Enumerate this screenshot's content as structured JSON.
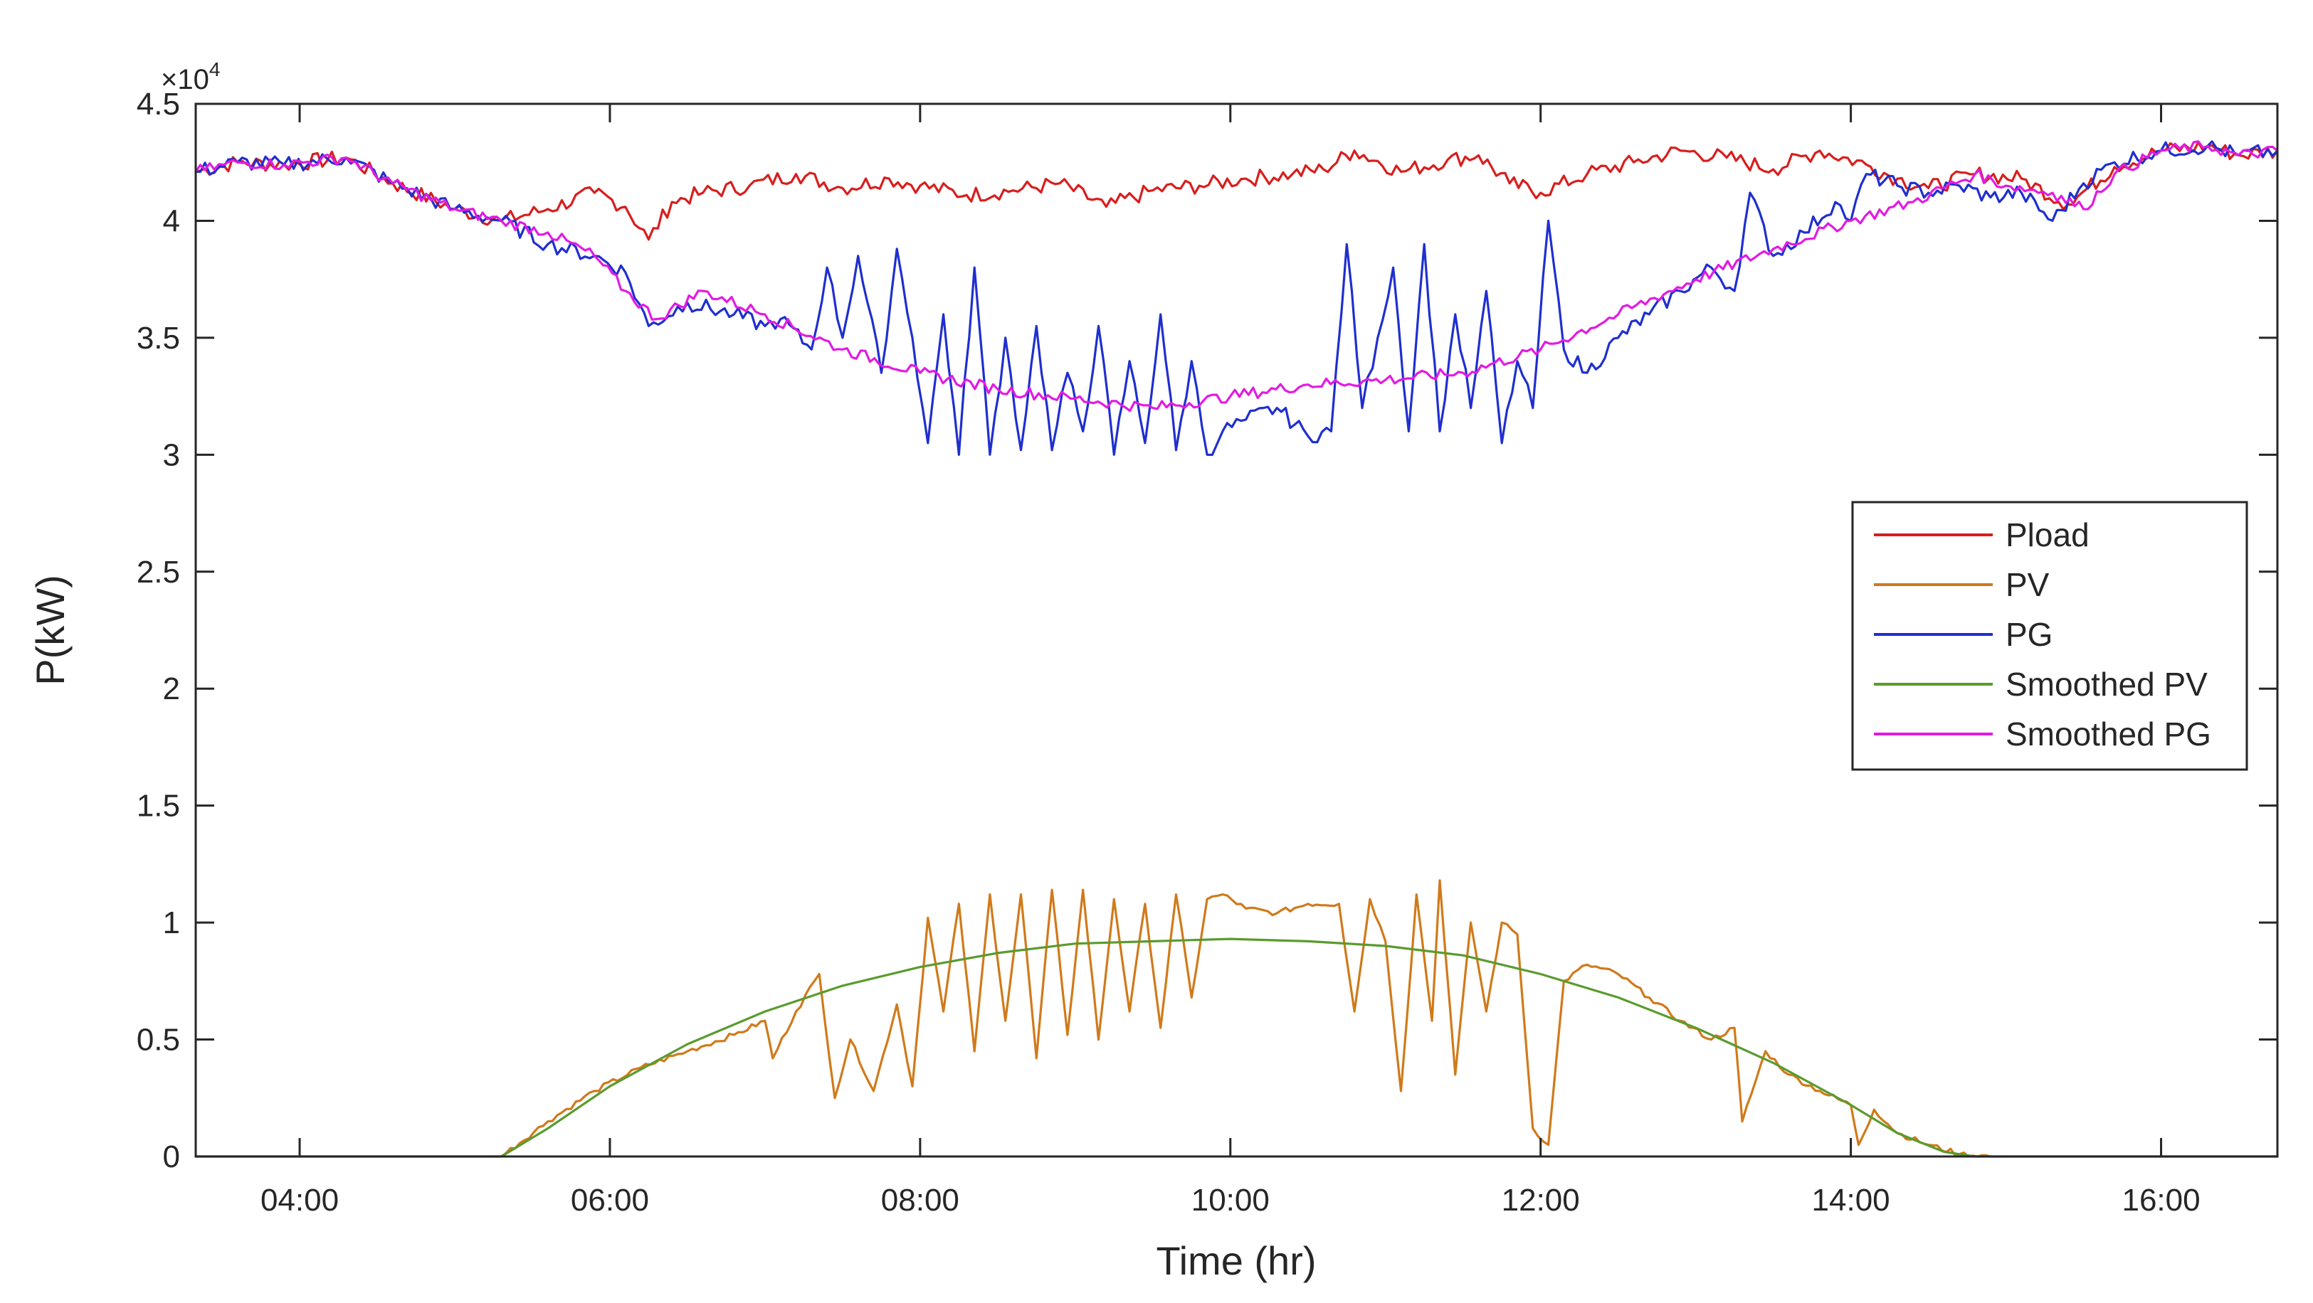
{
  "chart_data": {
    "type": "line",
    "title": "",
    "xlabel": "Time (hr)",
    "ylabel": "P(kW)",
    "y_multiplier": {
      "base": "×10",
      "exponent": "4"
    },
    "xlim": [
      3.33,
      16.75
    ],
    "ylim": [
      0,
      4.5
    ],
    "x_ticks": [
      {
        "value": 4,
        "label": "04:00"
      },
      {
        "value": 6,
        "label": "06:00"
      },
      {
        "value": 8,
        "label": "08:00"
      },
      {
        "value": 10,
        "label": "10:00"
      },
      {
        "value": 12,
        "label": "12:00"
      },
      {
        "value": 14,
        "label": "14:00"
      },
      {
        "value": 16,
        "label": "16:00"
      }
    ],
    "y_ticks": [
      {
        "value": 0,
        "label": "0"
      },
      {
        "value": 0.5,
        "label": "0.5"
      },
      {
        "value": 1,
        "label": "1"
      },
      {
        "value": 1.5,
        "label": "1.5"
      },
      {
        "value": 2,
        "label": "2"
      },
      {
        "value": 2.5,
        "label": "2.5"
      },
      {
        "value": 3,
        "label": "3"
      },
      {
        "value": 3.5,
        "label": "3.5"
      },
      {
        "value": 4,
        "label": "4"
      },
      {
        "value": 4.5,
        "label": "4.5"
      }
    ],
    "grid": false,
    "legend_position": "right",
    "series": [
      {
        "name": "Pload",
        "color": "#d81e1e",
        "x": [
          3.33,
          3.6,
          3.9,
          4.3,
          4.6,
          5.0,
          5.3,
          5.6,
          5.9,
          6.1,
          6.25,
          6.4,
          6.6,
          6.9,
          7.2,
          7.5,
          7.8,
          8.0,
          8.3,
          8.6,
          8.9,
          9.2,
          9.5,
          9.8,
          10.1,
          10.4,
          10.6,
          10.8,
          11.1,
          11.4,
          11.6,
          11.8,
          12.0,
          12.3,
          12.6,
          12.9,
          13.2,
          13.5,
          13.8,
          14.1,
          14.3,
          14.5,
          14.8,
          15.1,
          15.4,
          15.7,
          16.0,
          16.3,
          16.5,
          16.75
        ],
        "y": [
          4.21,
          4.25,
          4.24,
          4.27,
          4.16,
          4.05,
          4.0,
          4.05,
          4.12,
          4.06,
          3.92,
          4.08,
          4.12,
          4.15,
          4.2,
          4.14,
          4.18,
          4.15,
          4.11,
          4.13,
          4.16,
          4.06,
          4.13,
          4.15,
          4.18,
          4.2,
          4.22,
          4.3,
          4.21,
          4.26,
          4.28,
          4.16,
          4.12,
          4.2,
          4.25,
          4.3,
          4.27,
          4.22,
          4.3,
          4.24,
          4.18,
          4.14,
          4.2,
          4.18,
          4.07,
          4.23,
          4.3,
          4.32,
          4.28,
          4.3
        ]
      },
      {
        "name": "PV",
        "color": "#d07a1a",
        "x": [
          3.33,
          5.3,
          5.6,
          5.9,
          6.2,
          6.5,
          6.8,
          7.0,
          7.05,
          7.2,
          7.35,
          7.45,
          7.55,
          7.7,
          7.85,
          7.95,
          8.05,
          8.15,
          8.25,
          8.35,
          8.45,
          8.55,
          8.65,
          8.75,
          8.85,
          8.95,
          9.05,
          9.15,
          9.25,
          9.35,
          9.45,
          9.55,
          9.65,
          9.75,
          9.85,
          9.95,
          10.1,
          10.3,
          10.5,
          10.7,
          10.8,
          10.9,
          11.0,
          11.1,
          11.2,
          11.3,
          11.35,
          11.45,
          11.55,
          11.65,
          11.75,
          11.85,
          11.95,
          12.05,
          12.15,
          12.3,
          12.5,
          12.7,
          12.9,
          13.1,
          13.25,
          13.3,
          13.45,
          13.6,
          13.8,
          14.0,
          14.05,
          14.15,
          14.3,
          14.5,
          14.7,
          14.9,
          15.2,
          16.0,
          16.75
        ],
        "y": [
          0,
          0,
          0.15,
          0.28,
          0.38,
          0.45,
          0.52,
          0.58,
          0.42,
          0.62,
          0.78,
          0.25,
          0.5,
          0.28,
          0.65,
          0.3,
          1.02,
          0.62,
          1.08,
          0.45,
          1.12,
          0.58,
          1.12,
          0.42,
          1.14,
          0.52,
          1.14,
          0.5,
          1.1,
          0.62,
          1.08,
          0.55,
          1.12,
          0.68,
          1.1,
          1.12,
          1.06,
          1.04,
          1.08,
          1.08,
          0.62,
          1.1,
          0.92,
          0.28,
          1.12,
          0.58,
          1.18,
          0.35,
          1.0,
          0.62,
          1.0,
          0.95,
          0.12,
          0.05,
          0.75,
          0.82,
          0.78,
          0.68,
          0.58,
          0.5,
          0.55,
          0.15,
          0.45,
          0.35,
          0.28,
          0.22,
          0.05,
          0.2,
          0.1,
          0.05,
          0.01,
          0,
          0,
          0,
          0
        ]
      },
      {
        "name": "PG",
        "color": "#1f2fd0",
        "x": [
          3.33,
          3.6,
          3.9,
          4.3,
          4.6,
          5.0,
          5.3,
          5.6,
          5.9,
          6.1,
          6.25,
          6.5,
          6.8,
          7.0,
          7.1,
          7.3,
          7.4,
          7.5,
          7.6,
          7.75,
          7.85,
          7.95,
          8.05,
          8.15,
          8.25,
          8.35,
          8.45,
          8.55,
          8.65,
          8.75,
          8.85,
          8.95,
          9.05,
          9.15,
          9.25,
          9.35,
          9.45,
          9.55,
          9.65,
          9.75,
          9.85,
          9.95,
          10.1,
          10.3,
          10.5,
          10.65,
          10.75,
          10.85,
          10.95,
          11.05,
          11.15,
          11.25,
          11.35,
          11.45,
          11.55,
          11.65,
          11.75,
          11.85,
          11.95,
          12.05,
          12.15,
          12.3,
          12.5,
          12.7,
          12.9,
          13.1,
          13.25,
          13.35,
          13.5,
          13.7,
          13.9,
          14.0,
          14.1,
          14.3,
          14.5,
          14.7,
          14.9,
          15.1,
          15.3,
          15.5,
          15.7,
          16.0,
          16.3,
          16.5,
          16.75
        ],
        "y": [
          4.21,
          4.25,
          4.24,
          4.27,
          4.16,
          4.05,
          4.0,
          3.9,
          3.85,
          3.78,
          3.55,
          3.65,
          3.6,
          3.55,
          3.58,
          3.45,
          3.8,
          3.5,
          3.85,
          3.35,
          3.88,
          3.5,
          3.05,
          3.6,
          3.0,
          3.8,
          3.0,
          3.5,
          3.02,
          3.55,
          3.02,
          3.35,
          3.1,
          3.55,
          3.0,
          3.4,
          3.05,
          3.6,
          3.02,
          3.4,
          3.0,
          3.1,
          3.15,
          3.2,
          3.08,
          3.1,
          3.9,
          3.2,
          3.5,
          3.8,
          3.1,
          3.9,
          3.1,
          3.6,
          3.2,
          3.7,
          3.05,
          3.4,
          3.2,
          4.0,
          3.45,
          3.35,
          3.5,
          3.6,
          3.7,
          3.8,
          3.7,
          4.12,
          3.85,
          3.95,
          4.08,
          4.0,
          4.2,
          4.15,
          4.12,
          4.15,
          4.1,
          4.12,
          4.0,
          4.16,
          4.25,
          4.3,
          4.32,
          4.28,
          4.3
        ]
      },
      {
        "name": "Smoothed PV",
        "color": "#5a9b2e",
        "x": [
          3.33,
          5.3,
          5.6,
          6.0,
          6.5,
          7.0,
          7.5,
          8.0,
          8.5,
          9.0,
          9.5,
          10.0,
          10.5,
          11.0,
          11.5,
          12.0,
          12.5,
          13.0,
          13.5,
          14.0,
          14.3,
          14.6,
          14.8,
          16.75
        ],
        "y": [
          0,
          0,
          0.12,
          0.3,
          0.48,
          0.62,
          0.73,
          0.81,
          0.87,
          0.91,
          0.92,
          0.93,
          0.92,
          0.9,
          0.86,
          0.78,
          0.68,
          0.55,
          0.4,
          0.22,
          0.1,
          0.02,
          0,
          0
        ]
      },
      {
        "name": "Smoothed PG",
        "color": "#e21be2",
        "x": [
          3.33,
          3.6,
          3.9,
          4.3,
          4.6,
          5.0,
          5.3,
          5.6,
          5.9,
          6.1,
          6.3,
          6.6,
          7.0,
          7.5,
          8.0,
          8.5,
          9.0,
          9.5,
          10.0,
          10.5,
          11.0,
          11.5,
          12.0,
          12.5,
          13.0,
          13.5,
          14.0,
          14.4,
          14.8,
          15.0,
          15.3,
          15.5,
          15.7,
          16.0,
          16.3,
          16.5,
          16.75
        ],
        "y": [
          4.21,
          4.25,
          4.24,
          4.27,
          4.16,
          4.05,
          4.0,
          3.95,
          3.85,
          3.7,
          3.58,
          3.7,
          3.6,
          3.45,
          3.35,
          3.28,
          3.24,
          3.2,
          3.25,
          3.3,
          3.32,
          3.35,
          3.45,
          3.6,
          3.75,
          3.88,
          4.0,
          4.08,
          4.2,
          4.15,
          4.12,
          4.05,
          4.2,
          4.3,
          4.32,
          4.28,
          4.3
        ]
      }
    ]
  }
}
